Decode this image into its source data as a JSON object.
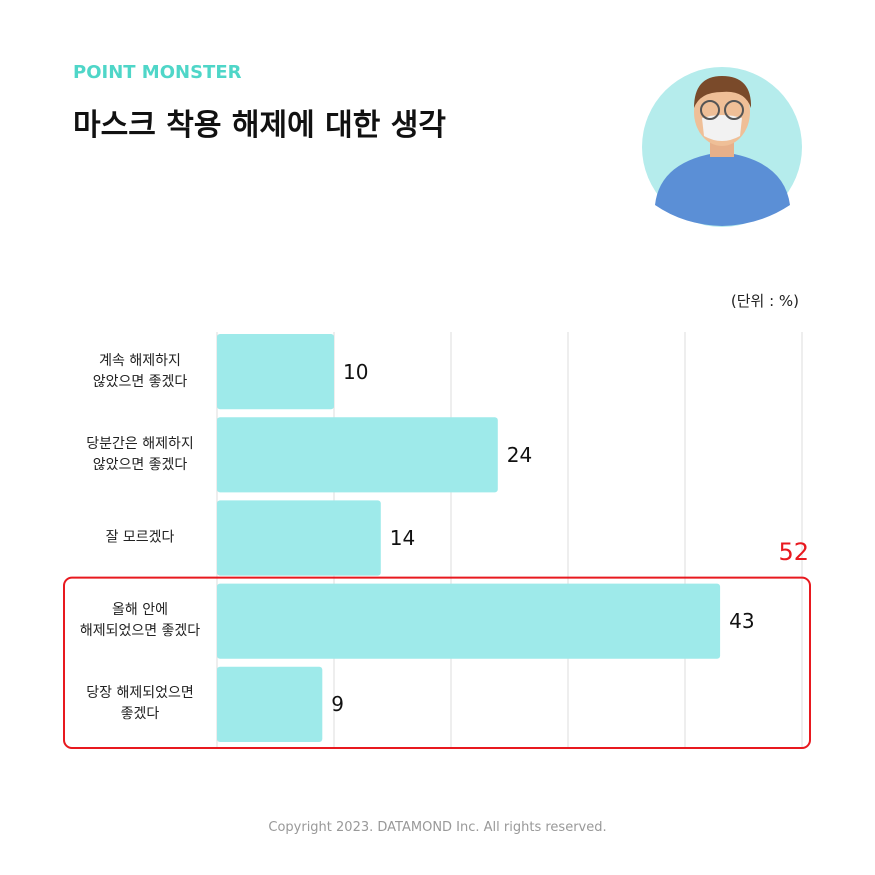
{
  "chart_data": {
    "type": "hbar",
    "brand": "POINT MONSTER",
    "title": "마스크 착용 해제에 대한 생각",
    "unit_label": "(단위 : %)",
    "categories": [
      "계속 해제하지\n않았으면 좋겠다",
      "당분간은 해제하지\n않았으면 좋겠다",
      "잘 모르겠다",
      "올해 안에\n해제되었으면 좋겠다",
      "당장 해제되었으면\n좋겠다"
    ],
    "values": [
      10,
      24,
      14,
      43,
      9
    ],
    "color": "#9eeaea",
    "xlim": [
      0,
      50
    ],
    "xticks": [
      0,
      10,
      20,
      30,
      40,
      50
    ],
    "grid": true,
    "annotation": "52",
    "annotation_color": "#e8191f",
    "footer": "Copyright 2023. DATAMOND Inc. All rights reserved."
  }
}
